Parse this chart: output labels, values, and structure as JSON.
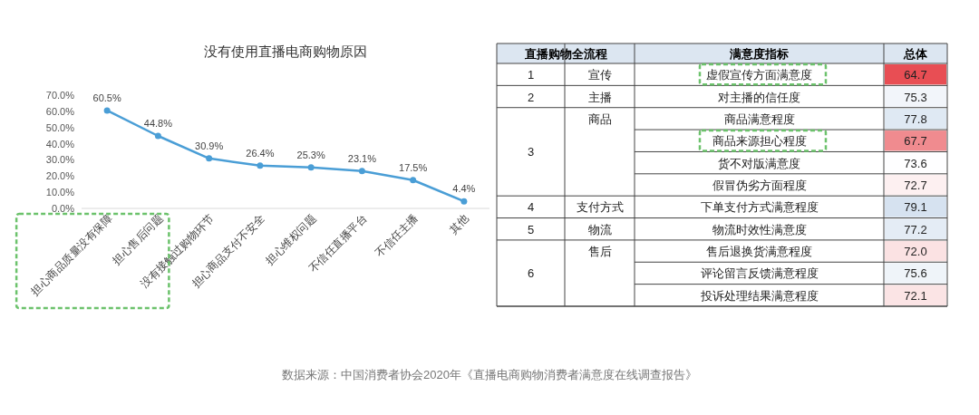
{
  "chart_data": [
    {
      "type": "line",
      "title": "没有使用直播电商购物原因",
      "categories": [
        "担心商品质量没有保障",
        "担心售后问题",
        "没有接触过购物环节",
        "担心商品支付不安全",
        "担心维权问题",
        "不信任直播平台",
        "不信任主播",
        "其他"
      ],
      "values": [
        60.5,
        44.8,
        30.9,
        26.4,
        25.3,
        23.1,
        17.5,
        4.4
      ],
      "value_labels": [
        "60.5%",
        "44.8%",
        "30.9%",
        "26.4%",
        "25.3%",
        "23.1%",
        "17.5%",
        "4.4%"
      ],
      "color": "#4a9ed6",
      "marker": "circle",
      "ylim": [
        0,
        70
      ],
      "yticks": [
        {
          "value": 0,
          "label": "0.0%"
        },
        {
          "value": 10,
          "label": "10.0%"
        },
        {
          "value": 20,
          "label": "20.0%"
        },
        {
          "value": 30,
          "label": "30.0%"
        },
        {
          "value": 40,
          "label": "40.0%"
        },
        {
          "value": 50,
          "label": "50.0%"
        },
        {
          "value": 60,
          "label": "60.0%"
        },
        {
          "value": 70,
          "label": "70.0%"
        }
      ]
    },
    {
      "type": "heatmap",
      "ylabel": "满意度指标",
      "categories": [
        "总体"
      ],
      "y_categories": [
        "虚假宣传方面满意度",
        "对主播的信任度",
        "商品满意程度",
        "商品来源担心程度",
        "货不对版满意度",
        "假冒伪劣方面程度",
        "下单支付方式满意程度",
        "物流时效性满意度",
        "售后退换货满意程度",
        "评论留言反馈满意程度",
        "投诉处理结果满意程度"
      ],
      "y2_categories": [
        "宣传",
        "主播",
        "商品",
        null,
        null,
        null,
        "支付方式",
        "物流",
        "售后",
        null,
        null
      ],
      "cells": [
        [
          64.7
        ],
        [
          75.3
        ],
        [
          77.8
        ],
        [
          67.7
        ],
        [
          73.6
        ],
        [
          72.7
        ],
        [
          79.1
        ],
        [
          77.2
        ],
        [
          72.0
        ],
        [
          75.6
        ],
        [
          72.1
        ]
      ],
      "cell_labels": [
        [
          "64.7"
        ],
        [
          "75.3"
        ],
        [
          "77.8"
        ],
        [
          "67.7"
        ],
        [
          "73.6"
        ],
        [
          "72.7"
        ],
        [
          "79.1"
        ],
        [
          "77.2"
        ],
        [
          "72.0"
        ],
        [
          "75.6"
        ],
        [
          "72.1"
        ]
      ],
      "annotations": [
        "直播购物全流程",
        "数据来源：中国消费者协会2020年《直播电商购物消费者满意度在线调查报告》",
        "1",
        "2",
        "3",
        "4",
        "5",
        "6"
      ]
    }
  ]
}
